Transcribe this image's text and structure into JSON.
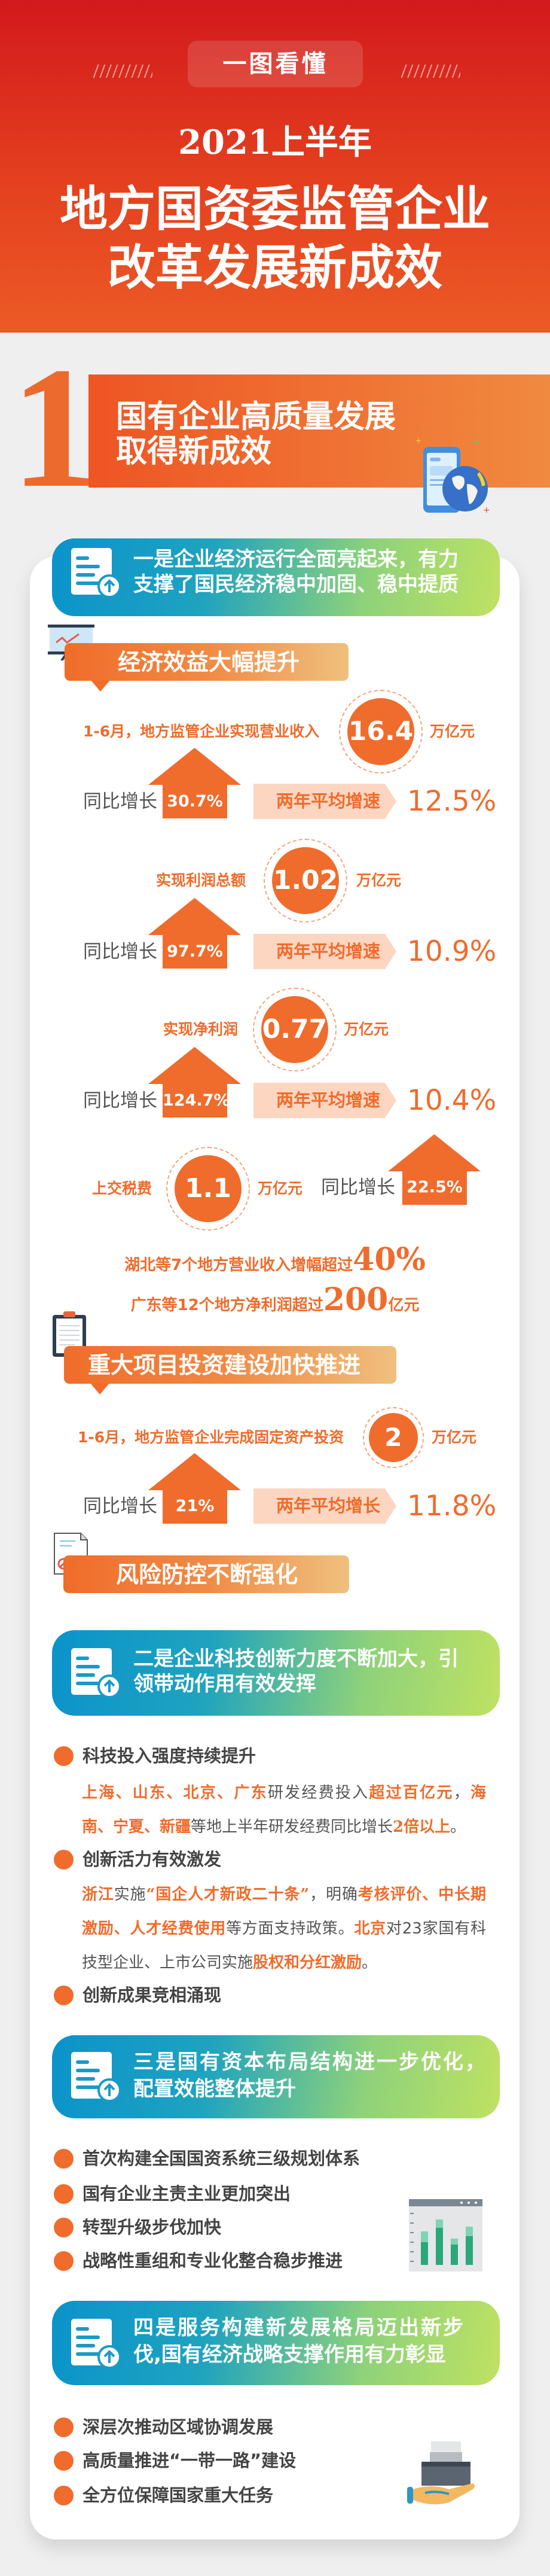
{
  "header": {
    "pill": "一图看懂",
    "year": "2021上半年",
    "title_lines": [
      "地方国资委监管企业",
      "改革发展新成效"
    ]
  },
  "section1": {
    "number": "1",
    "title_lines": [
      "国有企业高质量发展",
      "取得新成效"
    ]
  },
  "banners": [
    {
      "lines": [
        "一是企业经济运行全面亮起来，有力",
        "支撑了国民经济稳中加固、稳中提质"
      ]
    },
    {
      "lines": [
        "二是企业科技创新力度不断加大，引",
        "领带动作用有效发挥"
      ]
    },
    {
      "lines": [
        "三是国有资本布局结构进一步优化，",
        "配置效能整体提升"
      ]
    },
    {
      "lines": [
        "四是服务构建新发展格局迈出新步",
        "伐,国有经济战略支撑作用有力彰显"
      ]
    }
  ],
  "economy": {
    "heading": "经济效益大幅提升",
    "metrics": [
      {
        "label": "1-6月，地方监管企业实现营业收入",
        "value": "16.4",
        "unit": "万亿元",
        "yoy_label": "同比增长",
        "yoy": "30.7%",
        "avg_label": "两年平均增速",
        "avg": "12.5%"
      },
      {
        "label": "实现利润总额",
        "value": "1.02",
        "unit": "万亿元",
        "yoy_label": "同比增长",
        "yoy": "97.7%",
        "avg_label": "两年平均增速",
        "avg": "10.9%"
      },
      {
        "label": "实现净利润",
        "value": "0.77",
        "unit": "万亿元",
        "yoy_label": "同比增长",
        "yoy": "124.7%",
        "avg_label": "两年平均增速",
        "avg": "10.4%"
      }
    ],
    "tax": {
      "label": "上交税费",
      "value": "1.1",
      "unit": "万亿元",
      "yoy_label": "同比增长",
      "yoy": "22.5%"
    },
    "highlights": [
      {
        "text": "湖北等7个地方营业收入增幅超过",
        "num": "40%",
        "suffix": ""
      },
      {
        "text": "广东等12个地方净利润超过",
        "num": "200",
        "suffix": "亿元"
      }
    ]
  },
  "investment": {
    "heading": "重大项目投资建设加快推进",
    "label": "1-6月，地方监管企业完成固定资产投资",
    "value": "2",
    "unit": "万亿元",
    "yoy_label": "同比增长",
    "yoy": "21%",
    "avg_label": "两年平均增长",
    "avg": "11.8%"
  },
  "risk": {
    "heading": "风险防控不断强化"
  },
  "tech": {
    "items": [
      {
        "title": "科技投入强度持续提升",
        "body": [
          {
            "text": "上海、山东、北京、广东",
            "hl": true
          },
          {
            "text": "研发经费投入",
            "hl": false
          },
          {
            "text": "超过百亿元",
            "hl": true
          },
          {
            "text": "，",
            "hl": false
          },
          {
            "text": "海南、宁夏、新疆",
            "hl": true
          },
          {
            "text": "等地上半年研发经费同比增长",
            "hl": false
          },
          {
            "text": "2倍以上",
            "hl": true
          },
          {
            "text": "。",
            "hl": false
          }
        ]
      },
      {
        "title": "创新活力有效激发",
        "body": [
          {
            "text": "浙江",
            "hl": true
          },
          {
            "text": "实施",
            "hl": false
          },
          {
            "text": "“国企人才新政二十条”",
            "hl": true
          },
          {
            "text": "，明确",
            "hl": false
          },
          {
            "text": "考核评价、中长期激励、人才经费使用",
            "hl": true
          },
          {
            "text": "等方面支持政策。",
            "hl": false
          },
          {
            "text": "北京",
            "hl": true
          },
          {
            "text": "对23家国有科技型企业、上市公司实施",
            "hl": false
          },
          {
            "text": "股权和分红激励",
            "hl": true
          },
          {
            "text": "。",
            "hl": false
          }
        ]
      },
      {
        "title": "创新成果竞相涌现",
        "body": []
      }
    ]
  },
  "layout_items": [
    "首次构建全国国资系统三级规划体系",
    "国有企业主责主业更加突出",
    "转型升级步伐加快",
    "战略性重组和专业化整合稳步推进"
  ],
  "service_items": [
    "深层次推动区域协调发展",
    "高质量推进“一带一路”建设",
    "全方位保障国家重大任务"
  ],
  "icons": [
    "phone-globe-icon",
    "document-upload-icon",
    "presentation-chart-icon",
    "clipboard-icon",
    "document-forbidden-icon",
    "bar-chart-window-icon",
    "hand-box-icon",
    "arrow-up-icon"
  ],
  "colors": {
    "header_red": "#d2191c",
    "accent_orange": "#ef6c2c",
    "banner_blue": "#0a93cb",
    "banner_green": "#bfe262",
    "pill_peach": "#fdd6c2",
    "background_gray": "#efefef"
  }
}
